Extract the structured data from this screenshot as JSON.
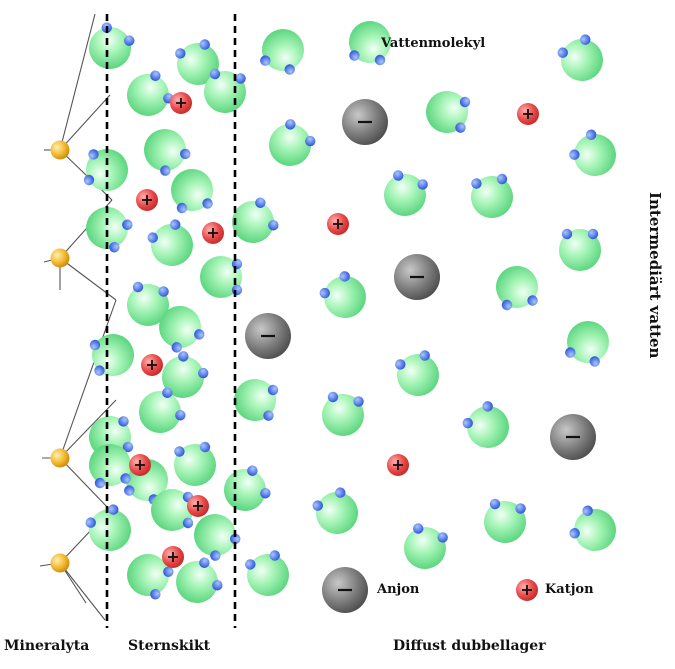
{
  "labels": {
    "mineral_surface": "Mineralyta",
    "stern_layer": "Sternskikt",
    "diffuse_layer": "Diffust dubbellager",
    "water_molecule": "Vattenmolekyl",
    "anion": "Anjon",
    "cation": "Katjon",
    "intermediate_water": "Intermediärt vatten"
  },
  "symbols": {
    "anion_sign": "−",
    "cation_sign": "+"
  },
  "icons": {
    "water_molecule": "water-molecule-icon",
    "anion": "anion-icon",
    "cation": "cation-icon",
    "surface_atom": "surface-atom-icon"
  },
  "colors": {
    "oxygen": "#8ef0a6",
    "hydrogen": "#3f6fe8",
    "anion": "#7f7f7f",
    "cation": "#e84848",
    "surface_atom": "#f2b62c",
    "boundary": "#000000"
  }
}
